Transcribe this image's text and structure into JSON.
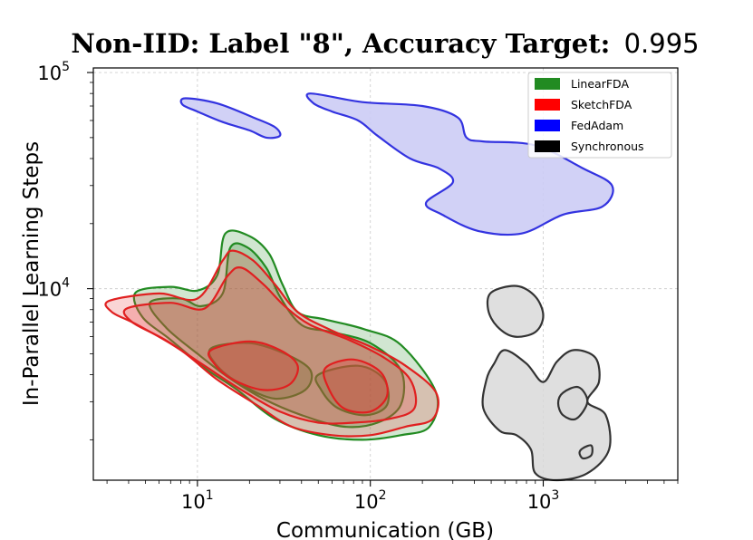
{
  "chart_data": {
    "type": "density-contour",
    "title_prefix": "Non-IID: Label \"8\", Accuracy Target:",
    "title_value": "0.995",
    "xlabel": "Communication (GB)",
    "ylabel": "In-Parallel Learning Steps",
    "xscale": "log",
    "yscale": "log",
    "xlim": [
      2.5,
      6000
    ],
    "ylim": [
      1300,
      105000
    ],
    "x_ticks": [
      {
        "value": 10,
        "base": "10",
        "exp": "1"
      },
      {
        "value": 100,
        "base": "10",
        "exp": "2"
      },
      {
        "value": 1000,
        "base": "10",
        "exp": "3"
      }
    ],
    "y_ticks": [
      {
        "value": 10000,
        "base": "10",
        "exp": "4"
      },
      {
        "value": 100000,
        "base": "10",
        "exp": "5"
      }
    ],
    "grid": true,
    "legend_position": "top-right",
    "series": [
      {
        "name": "LinearFDA",
        "color": "#228B22",
        "fill": "#2e8b2e",
        "regions": [
          {
            "level": "outer",
            "points": [
              [
                4.4,
                9600
              ],
              [
                7,
                10200
              ],
              [
                10,
                9800
              ],
              [
                13,
                11500
              ],
              [
                14.5,
                18000
              ],
              [
                20,
                17500
              ],
              [
                26,
                14500
              ],
              [
                31,
                10500
              ],
              [
                38,
                7800
              ],
              [
                55,
                7200
              ],
              [
                92,
                6500
              ],
              [
                150,
                5500
              ],
              [
                240,
                3300
              ],
              [
                220,
                2300
              ],
              [
                150,
                2100
              ],
              [
                90,
                2000
              ],
              [
                50,
                2100
              ],
              [
                28,
                2500
              ],
              [
                17,
                3400
              ],
              [
                11,
                4300
              ],
              [
                7,
                5800
              ],
              [
                4.8,
                7400
              ]
            ]
          },
          {
            "level": "mid",
            "points": [
              [
                5.3,
                8600
              ],
              [
                8,
                9000
              ],
              [
                10.5,
                8300
              ],
              [
                14,
                9500
              ],
              [
                15.5,
                15500
              ],
              [
                19.5,
                15500
              ],
              [
                25,
                12500
              ],
              [
                30,
                9200
              ],
              [
                40,
                6800
              ],
              [
                60,
                6300
              ],
              [
                100,
                5600
              ],
              [
                150,
                4200
              ],
              [
                150,
                2900
              ],
              [
                110,
                2400
              ],
              [
                70,
                2300
              ],
              [
                40,
                2600
              ],
              [
                24,
                3100
              ],
              [
                15,
                3900
              ],
              [
                10,
                5000
              ],
              [
                6.6,
                6600
              ]
            ]
          },
          {
            "level": "inner",
            "points": [
              [
                12,
                5300
              ],
              [
                20,
                5600
              ],
              [
                32,
                5000
              ],
              [
                45,
                4200
              ],
              [
                42,
                3400
              ],
              [
                28,
                3100
              ],
              [
                18,
                3600
              ],
              [
                13,
                4400
              ]
            ]
          },
          {
            "level": "inner",
            "points": [
              [
                50,
                4000
              ],
              [
                85,
                4400
              ],
              [
                120,
                3800
              ],
              [
                125,
                2900
              ],
              [
                95,
                2600
              ],
              [
                65,
                2800
              ],
              [
                52,
                3400
              ]
            ]
          }
        ]
      },
      {
        "name": "SketchFDA",
        "color": "#e02020",
        "fill": "#e84040",
        "regions": [
          {
            "level": "outer",
            "points": [
              [
                3.1,
                8800
              ],
              [
                6,
                9500
              ],
              [
                10,
                9000
              ],
              [
                14,
                13500
              ],
              [
                16,
                15000
              ],
              [
                21,
                13500
              ],
              [
                28,
                10500
              ],
              [
                38,
                7800
              ],
              [
                60,
                6400
              ],
              [
                100,
                5400
              ],
              [
                160,
                4400
              ],
              [
                240,
                3300
              ],
              [
                230,
                2500
              ],
              [
                160,
                2300
              ],
              [
                100,
                2100
              ],
              [
                60,
                2100
              ],
              [
                35,
                2300
              ],
              [
                22,
                2900
              ],
              [
                13,
                3800
              ],
              [
                8,
                5200
              ],
              [
                4.5,
                6800
              ],
              [
                3.2,
                7800
              ]
            ]
          },
          {
            "level": "mid",
            "points": [
              [
                3.9,
                8100
              ],
              [
                7,
                8600
              ],
              [
                11,
                8100
              ],
              [
                15,
                11500
              ],
              [
                18,
                12500
              ],
              [
                24,
                10500
              ],
              [
                32,
                8300
              ],
              [
                45,
                6800
              ],
              [
                75,
                5800
              ],
              [
                120,
                4800
              ],
              [
                170,
                3800
              ],
              [
                180,
                2800
              ],
              [
                130,
                2500
              ],
              [
                80,
                2400
              ],
              [
                50,
                2400
              ],
              [
                30,
                2700
              ],
              [
                18,
                3400
              ],
              [
                11,
                4400
              ],
              [
                6.5,
                5800
              ],
              [
                4.2,
                7000
              ]
            ]
          },
          {
            "level": "inner",
            "points": [
              [
                12,
                5200
              ],
              [
                20,
                5700
              ],
              [
                30,
                5200
              ],
              [
                38,
                4400
              ],
              [
                34,
                3600
              ],
              [
                24,
                3400
              ],
              [
                16,
                3800
              ],
              [
                12.5,
                4500
              ]
            ]
          },
          {
            "level": "inner",
            "points": [
              [
                55,
                4300
              ],
              [
                80,
                4700
              ],
              [
                115,
                4100
              ],
              [
                125,
                3200
              ],
              [
                100,
                2700
              ],
              [
                70,
                2800
              ],
              [
                57,
                3500
              ]
            ]
          }
        ]
      },
      {
        "name": "FedAdam",
        "color": "#3333e0",
        "fill": "#ccccf5",
        "regions": [
          {
            "level": "outer",
            "points": [
              [
                45,
                80000
              ],
              [
                90,
                73000
              ],
              [
                200,
                70000
              ],
              [
                320,
                62000
              ],
              [
                360,
                50000
              ],
              [
                450,
                48000
              ],
              [
                900,
                46000
              ],
              [
                1700,
                36000
              ],
              [
                2500,
                30000
              ],
              [
                2200,
                24000
              ],
              [
                1300,
                22000
              ],
              [
                750,
                18000
              ],
              [
                420,
                18500
              ],
              [
                260,
                22000
              ],
              [
                210,
                25000
              ],
              [
                300,
                31000
              ],
              [
                250,
                36000
              ],
              [
                170,
                40000
              ],
              [
                110,
                51000
              ],
              [
                85,
                60000
              ],
              [
                60,
                66000
              ],
              [
                47,
                72000
              ]
            ]
          },
          {
            "level": "outer",
            "points": [
              [
                8.5,
                76000
              ],
              [
                13,
                72000
              ],
              [
                21,
                62000
              ],
              [
                28,
                56000
              ],
              [
                30,
                51000
              ],
              [
                25,
                50000
              ],
              [
                20,
                54000
              ],
              [
                14,
                59000
              ],
              [
                10,
                66000
              ],
              [
                8.2,
                71000
              ]
            ]
          }
        ]
      },
      {
        "name": "Synchronous",
        "color": "#333333",
        "fill": "#d9d9d9",
        "regions": [
          {
            "level": "outer",
            "points": [
              [
                500,
                9600
              ],
              [
                700,
                10300
              ],
              [
                900,
                9200
              ],
              [
                1000,
                7500
              ],
              [
                900,
                6300
              ],
              [
                680,
                6000
              ],
              [
                540,
                6700
              ],
              [
                480,
                8000
              ]
            ]
          },
          {
            "level": "outer",
            "points": [
              [
                600,
                5200
              ],
              [
                800,
                4500
              ],
              [
                1000,
                3700
              ],
              [
                1200,
                4600
              ],
              [
                1500,
                5200
              ],
              [
                2000,
                4800
              ],
              [
                2100,
                3700
              ],
              [
                1800,
                3000
              ],
              [
                2300,
                2600
              ],
              [
                2400,
                1800
              ],
              [
                1800,
                1400
              ],
              [
                1200,
                1300
              ],
              [
                900,
                1400
              ],
              [
                850,
                1800
              ],
              [
                700,
                2100
              ],
              [
                560,
                2200
              ],
              [
                450,
                2800
              ],
              [
                470,
                3800
              ],
              [
                520,
                4500
              ]
            ]
          },
          {
            "level": "inner",
            "points": [
              [
                1300,
                3300
              ],
              [
                1600,
                3500
              ],
              [
                1800,
                3000
              ],
              [
                1550,
                2500
              ],
              [
                1300,
                2600
              ],
              [
                1220,
                2950
              ]
            ]
          },
          {
            "level": "inner",
            "points": [
              [
                1700,
                1830
              ],
              [
                1900,
                1880
              ],
              [
                1900,
                1700
              ],
              [
                1700,
                1640
              ],
              [
                1620,
                1740
              ]
            ]
          }
        ]
      }
    ]
  }
}
